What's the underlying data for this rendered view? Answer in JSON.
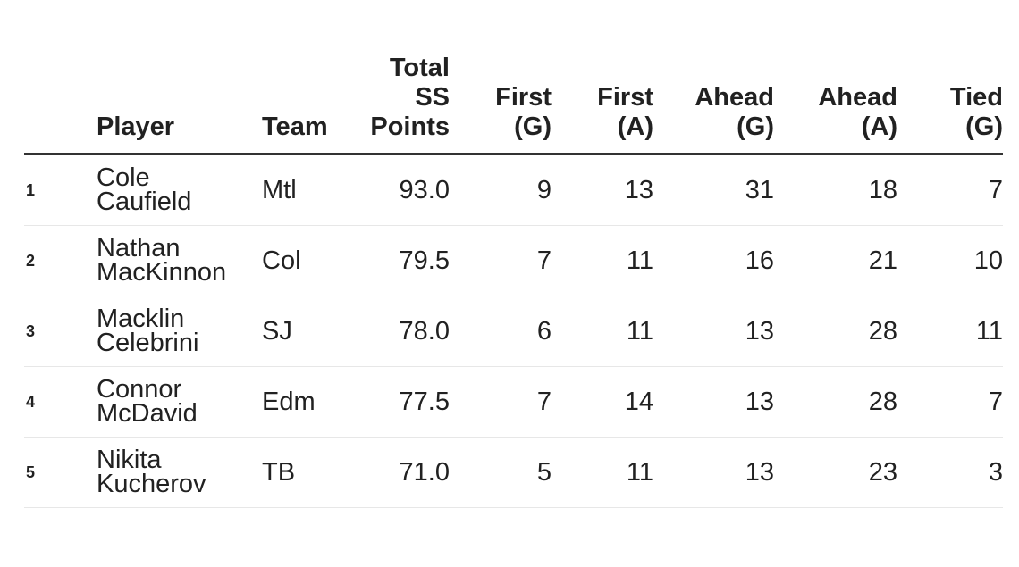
{
  "colors": {
    "text": "#212121",
    "header_rule": "#333333",
    "row_divider": "#e7e7e7",
    "background": "#ffffff"
  },
  "table": {
    "headers": {
      "rank": "",
      "player": [
        "Player"
      ],
      "team": [
        "Team"
      ],
      "points": [
        "Total",
        "SS",
        "Points"
      ],
      "first_g": [
        "First",
        "(G)"
      ],
      "first_a": [
        "First",
        "(A)"
      ],
      "ahead_g": [
        "Ahead",
        "(G)"
      ],
      "ahead_a": [
        "Ahead",
        "(A)"
      ],
      "tied_g": [
        "Tied",
        "(G)"
      ]
    },
    "rows": [
      {
        "rank": "1",
        "first": "Cole",
        "last": "Caufield",
        "team": "Mtl",
        "points": "93.0",
        "first_g": "9",
        "first_a": "13",
        "ahead_g": "31",
        "ahead_a": "18",
        "tied_g": "7"
      },
      {
        "rank": "2",
        "first": "Nathan",
        "last": "MacKinnon",
        "team": "Col",
        "points": "79.5",
        "first_g": "7",
        "first_a": "11",
        "ahead_g": "16",
        "ahead_a": "21",
        "tied_g": "10"
      },
      {
        "rank": "3",
        "first": "Macklin",
        "last": "Celebrini",
        "team": "SJ",
        "points": "78.0",
        "first_g": "6",
        "first_a": "11",
        "ahead_g": "13",
        "ahead_a": "28",
        "tied_g": "11"
      },
      {
        "rank": "4",
        "first": "Connor",
        "last": "McDavid",
        "team": "Edm",
        "points": "77.5",
        "first_g": "7",
        "first_a": "14",
        "ahead_g": "13",
        "ahead_a": "28",
        "tied_g": "7"
      },
      {
        "rank": "5",
        "first": "Nikita",
        "last": "Kucherov",
        "team": "TB",
        "points": "71.0",
        "first_g": "5",
        "first_a": "11",
        "ahead_g": "13",
        "ahead_a": "23",
        "tied_g": "3"
      }
    ]
  }
}
